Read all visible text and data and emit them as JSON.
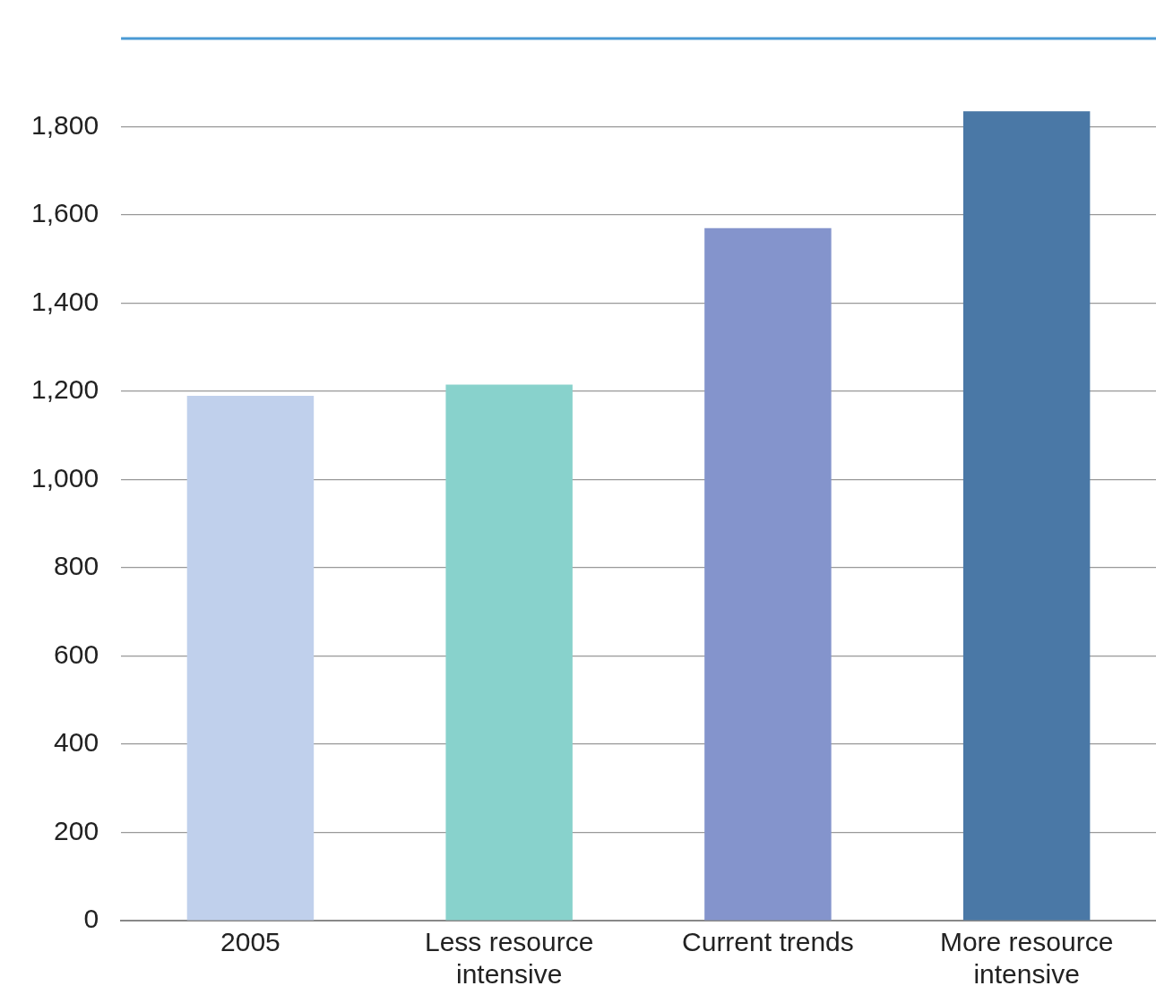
{
  "chart_data": {
    "type": "bar",
    "categories": [
      "2005",
      "Less resource intensive",
      "Current trends",
      "More resource intensive"
    ],
    "values": [
      1190,
      1215,
      1570,
      1835
    ],
    "colors": [
      "#c0d0ec",
      "#88d2cc",
      "#8494cc",
      "#4a78a6"
    ],
    "ylim": [
      0,
      2000
    ],
    "yticks": [
      0,
      200,
      400,
      600,
      800,
      {
        "value": 1000,
        "label": "1,000"
      },
      {
        "value": 1200,
        "label": "1,200"
      },
      {
        "value": 1400,
        "label": "1,400"
      },
      {
        "value": 1600,
        "label": "1,600"
      },
      {
        "value": 1800,
        "label": "1,800"
      }
    ],
    "grid": "y",
    "legend": false
  }
}
